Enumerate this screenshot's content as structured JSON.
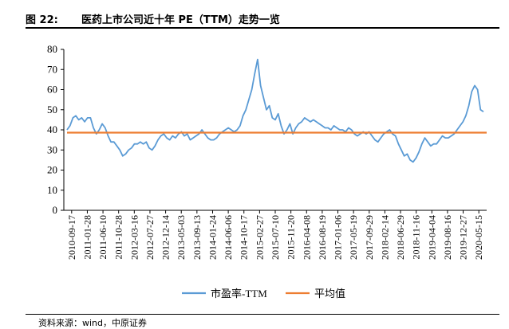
{
  "figure": {
    "label": "图 22:",
    "title": "医药上市公司近十年 PE（TTM）走势一览"
  },
  "source": "资料来源：wind，中原证券",
  "chart_data": {
    "type": "line",
    "title": "医药上市公司近十年 PE（TTM）走势一览",
    "xlabel": "",
    "ylabel": "",
    "ylim": [
      0,
      80
    ],
    "yticks": [
      0,
      10,
      20,
      30,
      40,
      50,
      60,
      70,
      80
    ],
    "grid": false,
    "legend_position": "bottom-center",
    "xtick_labels": [
      "2010-09-17",
      "2011-01-28",
      "2011-06-10",
      "2011-10-28",
      "2012-03-16",
      "2012-07-27",
      "2012-12-14",
      "2013-05-03",
      "2013-09-13",
      "2014-01-24",
      "2014-06-06",
      "2014-10-17",
      "2015-02-27",
      "2015-07-10",
      "2015-11-20",
      "2016-04-08",
      "2016-08-19",
      "2017-01-06",
      "2017-05-19",
      "2017-09-29",
      "2018-02-14",
      "2018-06-29",
      "2018-11-16",
      "2019-04-04",
      "2019-08-16",
      "2019-12-27",
      "2020-05-15"
    ],
    "series": [
      {
        "name": "市盈率-TTM",
        "color": "#5B9BD5",
        "values": [
          40,
          42,
          46,
          47,
          45,
          46,
          44,
          46,
          46,
          41,
          38,
          40,
          43,
          41,
          37,
          34,
          34,
          32,
          30,
          27,
          28,
          30,
          31,
          33,
          33,
          34,
          33,
          34,
          31,
          30,
          32,
          35,
          37,
          38,
          36,
          35,
          37,
          36,
          38,
          39,
          37,
          38,
          35,
          36,
          37,
          38,
          40,
          38,
          36,
          35,
          35,
          36,
          38,
          39,
          40,
          41,
          40,
          39,
          40,
          42,
          47,
          50,
          55,
          60,
          68,
          75,
          62,
          56,
          50,
          52,
          46,
          45,
          48,
          42,
          38,
          40,
          43,
          38,
          41,
          43,
          44,
          46,
          45,
          44,
          45,
          44,
          43,
          42,
          41,
          41,
          40,
          42,
          41,
          40,
          40,
          39,
          41,
          40,
          38,
          37,
          38,
          39,
          38,
          39,
          37,
          35,
          34,
          36,
          38,
          39,
          40,
          38,
          37,
          33,
          30,
          27,
          28,
          25,
          24,
          26,
          29,
          33,
          36,
          34,
          32,
          33,
          33,
          35,
          37,
          36,
          36,
          37,
          38,
          40,
          42,
          44,
          47,
          52,
          59,
          62,
          60,
          50,
          49
        ]
      },
      {
        "name": "平均值",
        "color": "#ED7D31",
        "values": [
          38.6
        ]
      }
    ]
  }
}
